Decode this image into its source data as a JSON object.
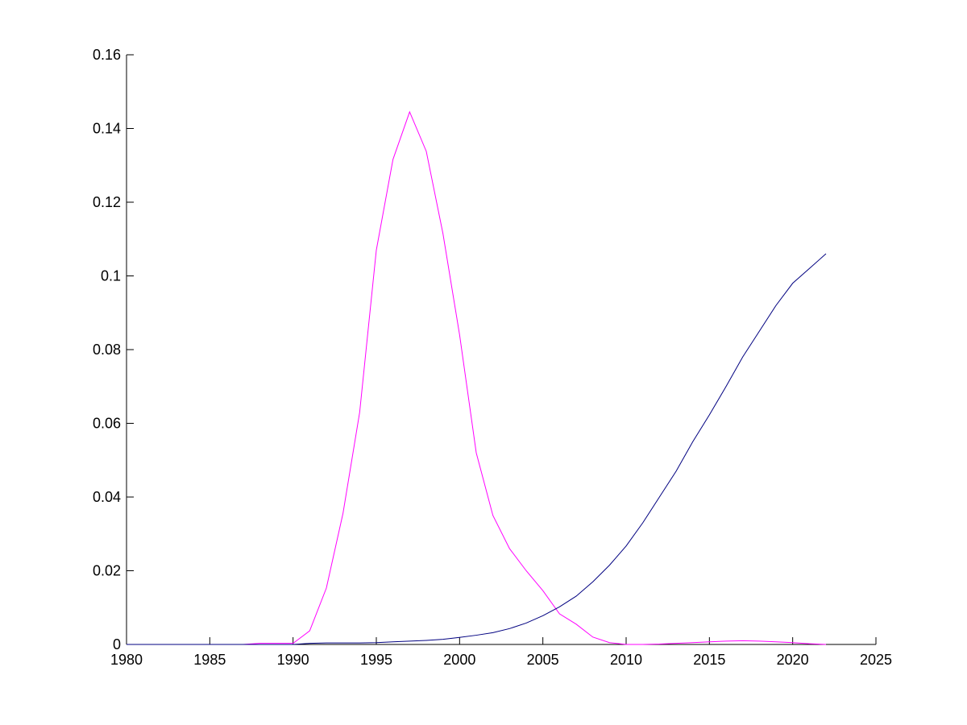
{
  "chart_data": {
    "type": "line",
    "x": [
      1980,
      1981,
      1982,
      1983,
      1984,
      1985,
      1986,
      1987,
      1988,
      1989,
      1990,
      1991,
      1992,
      1993,
      1994,
      1995,
      1996,
      1997,
      1998,
      1999,
      2000,
      2001,
      2002,
      2003,
      2004,
      2005,
      2006,
      2007,
      2008,
      2009,
      2010,
      2011,
      2012,
      2013,
      2014,
      2015,
      2016,
      2017,
      2018,
      2019,
      2020,
      2021,
      2022
    ],
    "series": [
      {
        "color": "#ff00ff",
        "values": [
          0,
          0,
          0,
          0,
          0,
          0,
          0,
          0,
          0.0003,
          0.0003,
          0.0003,
          0.0037,
          0.0153,
          0.0356,
          0.063,
          0.107,
          0.1316,
          0.1445,
          0.1338,
          0.1115,
          0.084,
          0.052,
          0.035,
          0.026,
          0.02,
          0.0146,
          0.0083,
          0.0055,
          0.002,
          0.0005,
          0,
          0,
          0.0001,
          0.0003,
          0.0005,
          0.0007,
          0.0009,
          0.001,
          0.0009,
          0.0007,
          0.0005,
          0.0002,
          0
        ]
      },
      {
        "color": "#000080",
        "values": [
          0,
          0,
          0,
          0,
          0,
          0,
          0,
          0,
          0,
          0,
          0,
          0.0003,
          0.0004,
          0.0004,
          0.0004,
          0.0005,
          0.0007,
          0.0009,
          0.0011,
          0.0014,
          0.0019,
          0.0025,
          0.0032,
          0.0043,
          0.0058,
          0.0078,
          0.0102,
          0.0131,
          0.017,
          0.0215,
          0.0267,
          0.033,
          0.04,
          0.047,
          0.055,
          0.0623,
          0.07,
          0.078,
          0.085,
          0.092,
          0.098,
          0.102,
          0.106
        ]
      }
    ],
    "xlim": [
      1980,
      2025
    ],
    "xticks": [
      1980,
      1985,
      1990,
      1995,
      2000,
      2005,
      2010,
      2015,
      2020,
      2025
    ],
    "ylim": [
      0,
      0.16
    ],
    "yticks": [
      0,
      0.02,
      0.04,
      0.06,
      0.08,
      0.1,
      0.12,
      0.14,
      0.16
    ]
  }
}
